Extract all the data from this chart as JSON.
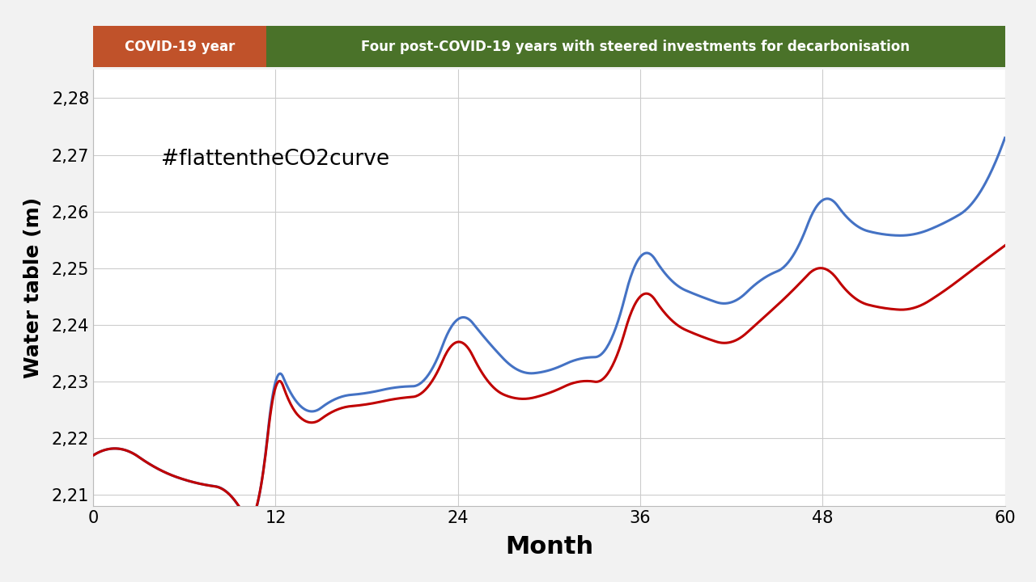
{
  "title": "",
  "xlabel": "Month",
  "ylabel": "Water table (m)",
  "annotation": "#flattentheCO2curve",
  "legend_box1_label": "COVID-19 year",
  "legend_box2_label": "Four post-COVID-19 years with steered investments for decarbonisation",
  "legend_box1_color": "#c0522a",
  "legend_box2_color": "#4a7229",
  "blue_line_color": "#4472c4",
  "red_line_color": "#c00000",
  "background_color": "#f2f2f2",
  "plot_bg_color": "#ffffff",
  "xlim": [
    0,
    60
  ],
  "ylim": [
    2.208,
    2.285
  ],
  "xticks": [
    0,
    12,
    24,
    36,
    48,
    60
  ],
  "yticks": [
    2.21,
    2.22,
    2.23,
    2.24,
    2.25,
    2.26,
    2.27,
    2.28
  ],
  "months_blue": [
    0,
    2,
    4,
    7,
    9,
    11,
    12,
    13,
    14,
    16,
    18,
    20,
    22,
    24,
    26,
    28,
    30,
    32,
    34,
    36,
    38,
    40,
    42,
    44,
    46,
    48,
    50,
    52,
    54,
    56,
    58,
    60
  ],
  "values_blue": [
    2.217,
    2.218,
    2.215,
    2.212,
    2.21,
    2.211,
    2.23,
    2.228,
    2.225,
    2.227,
    2.228,
    2.229,
    2.231,
    2.241,
    2.237,
    2.232,
    2.232,
    2.234,
    2.237,
    2.252,
    2.248,
    2.245,
    2.244,
    2.248,
    2.252,
    2.262,
    2.258,
    2.256,
    2.256,
    2.258,
    2.262,
    2.273
  ],
  "months_red": [
    0,
    2,
    4,
    7,
    9,
    11,
    12,
    13,
    14,
    16,
    18,
    20,
    22,
    24,
    26,
    28,
    30,
    32,
    34,
    36,
    38,
    40,
    42,
    44,
    46,
    48,
    50,
    52,
    54,
    56,
    58,
    60
  ],
  "values_red": [
    2.217,
    2.218,
    2.215,
    2.212,
    2.21,
    2.211,
    2.229,
    2.226,
    2.223,
    2.225,
    2.226,
    2.227,
    2.229,
    2.237,
    2.23,
    2.227,
    2.228,
    2.23,
    2.232,
    2.245,
    2.241,
    2.238,
    2.237,
    2.241,
    2.246,
    2.25,
    2.245,
    2.243,
    2.243,
    2.246,
    2.25,
    2.254
  ]
}
